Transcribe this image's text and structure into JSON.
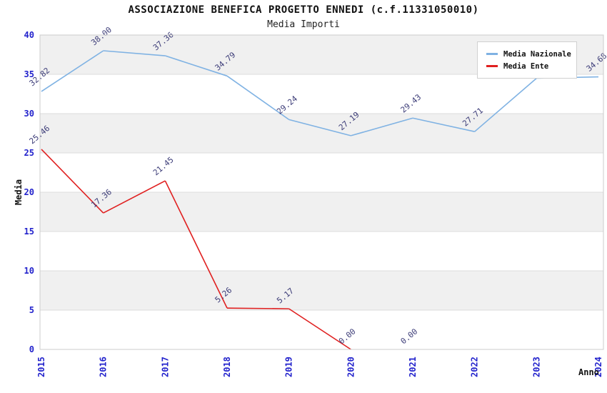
{
  "title": "ASSOCIAZIONE BENEFICA PROGETTO ENNEDI (c.f.11331050010)",
  "subtitle": "Media Importi",
  "chart_data": {
    "type": "line",
    "title": "ASSOCIAZIONE BENEFICA PROGETTO ENNEDI (c.f.11331050010)",
    "subtitle": "Media Importi",
    "categories": [
      "2015",
      "2016",
      "2017",
      "2018",
      "2019",
      "2020",
      "2021",
      "2022",
      "2023",
      "2024"
    ],
    "series": [
      {
        "name": "Media Nazionale",
        "color": "#7FB2E3",
        "values": [
          32.82,
          38.0,
          37.36,
          34.79,
          29.24,
          27.19,
          29.43,
          27.71,
          34.5,
          34.68
        ]
      },
      {
        "name": "Media Ente",
        "color": "#E02020",
        "values": [
          25.46,
          17.36,
          21.45,
          5.26,
          5.17,
          0.0,
          0.0,
          null,
          null,
          null
        ],
        "line_drawn_until_index": 5
      }
    ],
    "xlabel": "Anno",
    "ylabel": "Media",
    "ylim": [
      0,
      40
    ],
    "ytick": 5,
    "legend_position": "top-right",
    "grid": "horizontal-bands"
  },
  "colors": {
    "band": "#F0F0F0",
    "grid": "#DCDCDC",
    "border": "#CCCCCC",
    "axis_text": "#2222CC",
    "data_label": "#3C3C78"
  }
}
